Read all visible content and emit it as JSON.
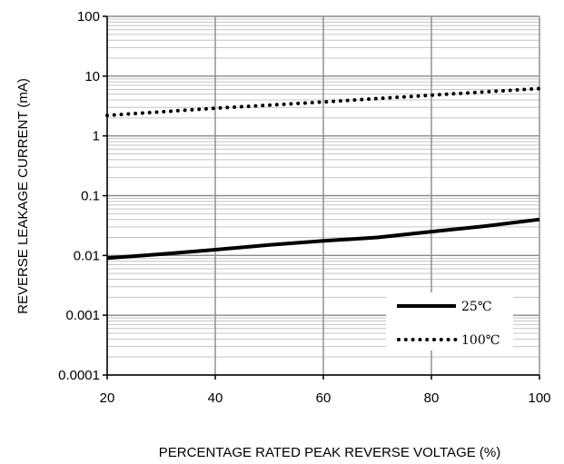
{
  "chart_data": {
    "type": "line",
    "xlabel": "PERCENTAGE RATED PEAK REVERSE VOLTAGE (%)",
    "ylabel": "REVERSE LEAKAGE CURRENT (mA)",
    "xlim": [
      20,
      100
    ],
    "ylim": [
      0.0001,
      100
    ],
    "y_scale": "log",
    "grid": true,
    "legend_position": "bottom-right",
    "x_ticks": [
      20,
      40,
      60,
      80,
      100
    ],
    "x_tick_labels": [
      "20",
      "40",
      "60",
      "80",
      "100"
    ],
    "y_ticks": [
      0.0001,
      0.001,
      0.01,
      0.1,
      1,
      10,
      100
    ],
    "y_tick_labels": [
      "0.0001",
      "0.001",
      "0.01",
      "0.1",
      "1",
      "10",
      "100"
    ],
    "series": [
      {
        "name": "25℃",
        "style": "solid",
        "color": "#000000",
        "x": [
          20,
          30,
          40,
          50,
          60,
          70,
          80,
          90,
          100
        ],
        "y": [
          0.009,
          0.0105,
          0.0125,
          0.015,
          0.0175,
          0.02,
          0.025,
          0.031,
          0.04
        ]
      },
      {
        "name": "100℃",
        "style": "dotted",
        "color": "#000000",
        "x": [
          20,
          40,
          60,
          80,
          100
        ],
        "y": [
          2.2,
          2.9,
          3.7,
          4.8,
          6.2
        ]
      }
    ]
  }
}
